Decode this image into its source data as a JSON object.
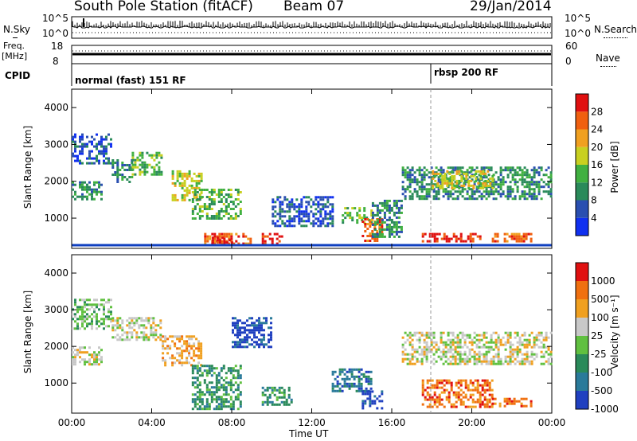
{
  "header": {
    "station": "South Pole Station (fitACF)",
    "beam": "Beam 07",
    "date": "29/Jan/2014"
  },
  "summary_panels": {
    "nsky_label": "N.Sky",
    "nsearch_label": "N.Search",
    "noise_ticks_top": "10^5",
    "noise_ticks_bottom": "10^0",
    "freq_label_top": "Freq.",
    "freq_label_bottom": "[MHz]",
    "freq_ticks": [
      "18",
      "8"
    ],
    "nave_label": "Nave",
    "nave_ticks": [
      "60",
      "0"
    ],
    "cpid_label": "CPID",
    "cpid_segments": [
      {
        "label": "normal (fast) 151 RF",
        "start_hour": 0
      },
      {
        "label": "rbsp 200 RF",
        "start_hour": 18
      }
    ]
  },
  "chart_data": [
    {
      "type": "heatmap",
      "title": "",
      "xlabel": "Time UT",
      "ylabel": "Slant Range [km]",
      "xlim_hours": [
        0,
        24
      ],
      "ylim": [
        180,
        4500
      ],
      "x_ticks": [
        "00:00",
        "04:00",
        "08:00",
        "12:00",
        "16:00",
        "20:00",
        "00:00"
      ],
      "y_ticks": [
        "1000",
        "2000",
        "3000",
        "4000"
      ],
      "colorbar": {
        "label": "Power [dB]",
        "ticks": [
          "4",
          "8",
          "12",
          "16",
          "20",
          "24",
          "28"
        ],
        "colors": [
          "#1030f0",
          "#2a4fb0",
          "#2a8a5a",
          "#40b040",
          "#c8d020",
          "#f0a020",
          "#f06010",
          "#e01010"
        ]
      },
      "regions": [
        {
          "t": [
            0.0,
            1.5
          ],
          "r": [
            1500,
            2000
          ],
          "level": 2
        },
        {
          "t": [
            0.0,
            2.0
          ],
          "r": [
            2500,
            3300
          ],
          "level": 1
        },
        {
          "t": [
            2.0,
            3.0
          ],
          "r": [
            2000,
            2600
          ],
          "level": 2
        },
        {
          "t": [
            3.0,
            4.5
          ],
          "r": [
            2200,
            2800
          ],
          "level": 3
        },
        {
          "t": [
            5.0,
            6.5
          ],
          "r": [
            1500,
            2300
          ],
          "level": 4
        },
        {
          "t": [
            6.5,
            9.0
          ],
          "r": [
            300,
            600
          ],
          "level": 6
        },
        {
          "t": [
            7.0,
            8.0
          ],
          "r": [
            350,
            500
          ],
          "level": 7
        },
        {
          "t": [
            6.0,
            8.5
          ],
          "r": [
            1000,
            1800
          ],
          "level": 3
        },
        {
          "t": [
            9.5,
            10.5
          ],
          "r": [
            300,
            600
          ],
          "level": 7
        },
        {
          "t": [
            10.0,
            13.0
          ],
          "r": [
            800,
            1600
          ],
          "level": 1
        },
        {
          "t": [
            13.5,
            15.0
          ],
          "r": [
            900,
            1300
          ],
          "level": 3
        },
        {
          "t": [
            14.5,
            15.5
          ],
          "r": [
            400,
            1000
          ],
          "level": 6
        },
        {
          "t": [
            15.0,
            16.5
          ],
          "r": [
            500,
            1500
          ],
          "level": 2
        },
        {
          "t": [
            16.5,
            24.0
          ],
          "r": [
            1500,
            2400
          ],
          "level": 2
        },
        {
          "t": [
            18.0,
            21.0
          ],
          "r": [
            1800,
            2300
          ],
          "level": 4
        },
        {
          "t": [
            17.5,
            20.5
          ],
          "r": [
            350,
            600
          ],
          "level": 7
        },
        {
          "t": [
            21.0,
            23.0
          ],
          "r": [
            350,
            600
          ],
          "level": 6
        }
      ]
    },
    {
      "type": "heatmap",
      "title": "",
      "xlabel": "Time UT",
      "ylabel": "Slant Range [km]",
      "xlim_hours": [
        0,
        24
      ],
      "ylim": [
        180,
        4500
      ],
      "x_ticks": [
        "00:00",
        "04:00",
        "08:00",
        "12:00",
        "16:00",
        "20:00",
        "00:00"
      ],
      "y_ticks": [
        "1000",
        "2000",
        "3000",
        "4000"
      ],
      "colorbar": {
        "label": "Velocity [m s⁻¹]",
        "ticks": [
          "1000",
          "500",
          "100",
          "25",
          "-25",
          "-100",
          "-500",
          "-1000"
        ],
        "colors": [
          "#2040c0",
          "#2a7a9a",
          "#2a8a5a",
          "#60c040",
          "#c8c8c8",
          "#f0a020",
          "#f07010",
          "#e01010"
        ]
      },
      "regions": [
        {
          "t": [
            0.0,
            1.5
          ],
          "r": [
            1500,
            2000
          ],
          "level": 4
        },
        {
          "t": [
            0.0,
            2.0
          ],
          "r": [
            2500,
            3300
          ],
          "level": 3
        },
        {
          "t": [
            2.0,
            4.5
          ],
          "r": [
            2200,
            2800
          ],
          "level": 4
        },
        {
          "t": [
            4.5,
            6.5
          ],
          "r": [
            1500,
            2300
          ],
          "level": 5
        },
        {
          "t": [
            6.0,
            8.5
          ],
          "r": [
            300,
            1500
          ],
          "level": 2
        },
        {
          "t": [
            8.0,
            10.0
          ],
          "r": [
            2000,
            2800
          ],
          "level": 0
        },
        {
          "t": [
            9.5,
            11.0
          ],
          "r": [
            400,
            900
          ],
          "level": 2
        },
        {
          "t": [
            13.0,
            15.0
          ],
          "r": [
            800,
            1400
          ],
          "level": 1
        },
        {
          "t": [
            14.5,
            15.5
          ],
          "r": [
            300,
            800
          ],
          "level": 0
        },
        {
          "t": [
            16.5,
            24.0
          ],
          "r": [
            1500,
            2400
          ],
          "level": 4
        },
        {
          "t": [
            17.5,
            21.0
          ],
          "r": [
            350,
            1100
          ],
          "level": 6
        },
        {
          "t": [
            21.0,
            23.0
          ],
          "r": [
            350,
            600
          ],
          "level": 6
        }
      ]
    }
  ]
}
